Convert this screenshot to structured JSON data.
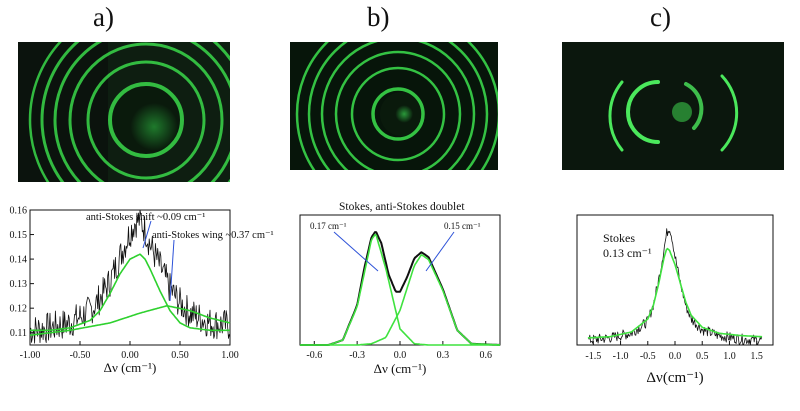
{
  "panels": [
    {
      "letter": "a)"
    },
    {
      "letter": "b)"
    },
    {
      "letter": "c)"
    }
  ],
  "chart_data": [
    {
      "type": "line",
      "panel": "a)",
      "xlabel": "Δν (cm⁻¹)",
      "ylabel": "",
      "xlim": [
        -1.0,
        1.0
      ],
      "ylim": [
        0.105,
        0.16
      ],
      "xticks": [
        "-1.00",
        "-0.50",
        "0.00",
        "0.50",
        "1.00"
      ],
      "yticks": [
        "0.11",
        "0.12",
        "0.13",
        "0.14",
        "0.15",
        "0.16"
      ],
      "annotations": [
        "anti-Stokes shift ~0.09 cm⁻¹",
        "anti-Stokes wing ~0.37 cm⁻¹"
      ],
      "series": [
        {
          "style": "noisy-measured",
          "color": "#111111",
          "x": [
            -1.0,
            -0.8,
            -0.6,
            -0.4,
            -0.3,
            -0.2,
            -0.1,
            0.0,
            0.05,
            0.1,
            0.15,
            0.2,
            0.3,
            0.4,
            0.5,
            0.6,
            0.8,
            1.0
          ],
          "y": [
            0.111,
            0.112,
            0.114,
            0.119,
            0.124,
            0.131,
            0.141,
            0.151,
            0.155,
            0.156,
            0.152,
            0.146,
            0.137,
            0.128,
            0.122,
            0.118,
            0.114,
            0.113
          ]
        },
        {
          "style": "fit",
          "color": "#2ed12e",
          "x": [
            -1.0,
            -0.8,
            -0.6,
            -0.4,
            -0.3,
            -0.2,
            -0.1,
            0.0,
            0.05,
            0.1,
            0.15,
            0.2,
            0.3,
            0.4,
            0.5,
            0.6,
            0.8,
            1.0
          ],
          "y": [
            0.111,
            0.111,
            0.112,
            0.115,
            0.119,
            0.126,
            0.134,
            0.14,
            0.141,
            0.142,
            0.14,
            0.136,
            0.127,
            0.119,
            0.114,
            0.112,
            0.111,
            0.111
          ]
        },
        {
          "style": "fit",
          "color": "#2ed12e",
          "x": [
            -1.0,
            -0.6,
            -0.2,
            0.1,
            0.37,
            0.6,
            0.8,
            1.0
          ],
          "y": [
            0.109,
            0.111,
            0.114,
            0.118,
            0.121,
            0.119,
            0.116,
            0.114
          ]
        }
      ]
    },
    {
      "type": "line",
      "panel": "b)",
      "title": "Stokes, anti-Stokes doublet",
      "xlabel": "Δν (cm⁻¹)",
      "ylabel": "",
      "xlim": [
        -0.7,
        0.7
      ],
      "ylim": [
        0,
        1.05
      ],
      "xticks": [
        "-0.6",
        "-0.3",
        "0.0",
        "0.3",
        "0.6"
      ],
      "annotations": [
        "0.17 cm⁻¹",
        "0.15 cm⁻¹"
      ],
      "series": [
        {
          "style": "measured",
          "color": "#111111",
          "x": [
            -0.7,
            -0.5,
            -0.4,
            -0.3,
            -0.25,
            -0.2,
            -0.17,
            -0.13,
            -0.08,
            -0.03,
            0.0,
            0.05,
            0.1,
            0.15,
            0.2,
            0.3,
            0.4,
            0.5,
            0.7
          ],
          "y": [
            0.0,
            0.0,
            0.04,
            0.32,
            0.62,
            0.87,
            0.92,
            0.82,
            0.57,
            0.43,
            0.43,
            0.55,
            0.7,
            0.75,
            0.71,
            0.45,
            0.12,
            0.01,
            0.0
          ]
        },
        {
          "style": "fit",
          "color": "#3fe23f",
          "x": [
            -0.7,
            -0.5,
            -0.4,
            -0.3,
            -0.2,
            -0.17,
            -0.1,
            0.0,
            0.1,
            0.2,
            0.3,
            0.5,
            0.7
          ],
          "y": [
            0.0,
            0.0,
            0.04,
            0.31,
            0.85,
            0.9,
            0.62,
            0.13,
            0.01,
            0.0,
            0.0,
            0.0,
            0.0
          ]
        },
        {
          "style": "fit",
          "color": "#3fe23f",
          "x": [
            -0.7,
            -0.3,
            -0.2,
            -0.1,
            0.0,
            0.1,
            0.15,
            0.2,
            0.3,
            0.4,
            0.5,
            0.7
          ],
          "y": [
            0.0,
            0.0,
            0.01,
            0.06,
            0.28,
            0.64,
            0.73,
            0.69,
            0.44,
            0.12,
            0.01,
            0.0
          ]
        }
      ]
    },
    {
      "type": "line",
      "panel": "c)",
      "xlabel": "Δν(cm⁻¹)",
      "ylabel": "",
      "xlim": [
        -1.8,
        1.8
      ],
      "ylim": [
        0,
        1.1
      ],
      "xticks": [
        "-1.5",
        "-1.0",
        "-0.5",
        "0.0",
        "0.5",
        "1.0",
        "1.5"
      ],
      "annotations": [
        "Stokes",
        "0.13 cm⁻¹"
      ],
      "series": [
        {
          "style": "noisy-measured",
          "color": "#111111",
          "x": [
            -1.6,
            -1.2,
            -0.8,
            -0.5,
            -0.4,
            -0.3,
            -0.2,
            -0.15,
            -0.1,
            -0.05,
            0.0,
            0.1,
            0.2,
            0.3,
            0.5,
            0.8,
            1.2,
            1.6
          ],
          "y": [
            0.04,
            0.06,
            0.1,
            0.2,
            0.34,
            0.55,
            0.82,
            0.95,
            1.0,
            0.9,
            0.75,
            0.52,
            0.33,
            0.22,
            0.13,
            0.08,
            0.05,
            0.04
          ]
        },
        {
          "style": "fit",
          "color": "#3fe23f",
          "x": [
            -1.6,
            -1.2,
            -0.8,
            -0.5,
            -0.4,
            -0.3,
            -0.2,
            -0.15,
            -0.1,
            0.0,
            0.1,
            0.2,
            0.3,
            0.5,
            0.8,
            1.2,
            1.6
          ],
          "y": [
            0.06,
            0.07,
            0.11,
            0.22,
            0.33,
            0.52,
            0.74,
            0.82,
            0.8,
            0.68,
            0.52,
            0.36,
            0.25,
            0.15,
            0.1,
            0.08,
            0.07
          ]
        }
      ]
    }
  ]
}
